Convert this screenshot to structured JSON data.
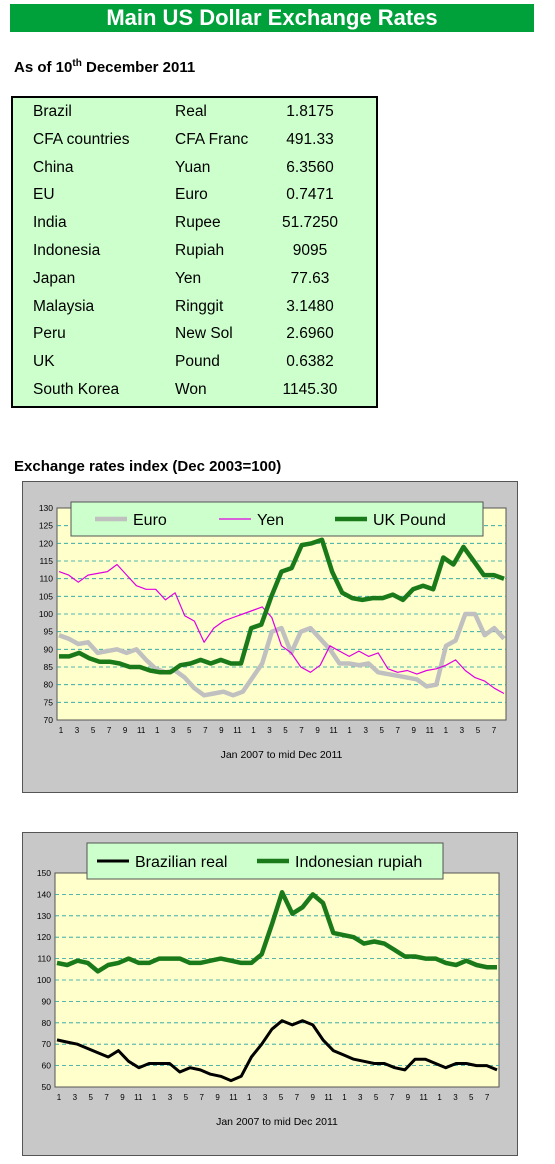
{
  "header": {
    "title": "Main US Dollar Exchange Rates"
  },
  "as_of": {
    "prefix": "As of 10",
    "sup": "th",
    "suffix": " December 2011"
  },
  "rates": [
    {
      "country": "Brazil",
      "currency": "Real",
      "value": "1.8175"
    },
    {
      "country": "CFA countries",
      "currency": "CFA Franc",
      "value": "491.33"
    },
    {
      "country": "China",
      "currency": "Yuan",
      "value": "6.3560"
    },
    {
      "country": "EU",
      "currency": "Euro",
      "value": "0.7471"
    },
    {
      "country": "India",
      "currency": "Rupee",
      "value": "51.7250"
    },
    {
      "country": "Indonesia",
      "currency": "Rupiah",
      "value": "9095"
    },
    {
      "country": "Japan",
      "currency": "Yen",
      "value": "77.63"
    },
    {
      "country": "Malaysia",
      "currency": "Ringgit",
      "value": "3.1480"
    },
    {
      "country": "Peru",
      "currency": "New Sol",
      "value": "2.6960"
    },
    {
      "country": "UK",
      "currency": "Pound",
      "value": "0.6382"
    },
    {
      "country": "South Korea",
      "currency": "Won",
      "value": "1145.30"
    }
  ],
  "index_section_title": "Exchange rates index (Dec 2003=100)",
  "chart_data": [
    {
      "type": "line",
      "title": "",
      "xlabel": "Jan 2007 to mid Dec 2011",
      "ylabel": "",
      "ylim": [
        70,
        130
      ],
      "yticks": [
        70,
        75,
        80,
        85,
        90,
        95,
        100,
        105,
        110,
        115,
        120,
        125,
        130
      ],
      "xtick_labels": [
        "1",
        "3",
        "5",
        "7",
        "9",
        "11",
        "1",
        "3",
        "5",
        "7",
        "9",
        "11",
        "1",
        "3",
        "5",
        "7",
        "9",
        "11",
        "1",
        "3",
        "5",
        "7",
        "9",
        "11",
        "1",
        "3",
        "5",
        "7"
      ],
      "grid": true,
      "legend_position": "top",
      "series": [
        {
          "name": "Euro",
          "color": "#c0c0c0",
          "width": 4.5,
          "values": [
            94,
            93,
            91.5,
            92,
            89,
            89.5,
            90,
            89,
            90,
            87,
            84.5,
            83.5,
            84,
            82,
            79,
            77,
            77.5,
            78,
            77,
            78,
            82,
            86,
            95,
            96,
            89,
            95,
            96,
            93,
            90,
            86,
            86,
            85.5,
            86,
            83.5,
            83,
            82.5,
            82,
            81.5,
            79.5,
            80,
            91,
            92.5,
            100,
            100,
            94,
            96,
            93
          ]
        },
        {
          "name": "Yen",
          "color": "#e000e0",
          "width": 1.2,
          "values": [
            112,
            111,
            109,
            111,
            111.5,
            112,
            114,
            111,
            108,
            107,
            107,
            104,
            106,
            99.5,
            98,
            92,
            96,
            98,
            99,
            100,
            101,
            102,
            99,
            91,
            89,
            85,
            83.5,
            85.5,
            91,
            89.5,
            88,
            89.5,
            88,
            89,
            84.5,
            83.5,
            84,
            83,
            84,
            84.5,
            85.5,
            87,
            84,
            82,
            81,
            79,
            77.5
          ]
        },
        {
          "name": "UK Pound",
          "color": "#1a7a1a",
          "width": 4.5,
          "values": [
            88,
            88,
            89,
            87.5,
            86.5,
            86.5,
            86,
            85,
            85,
            84,
            83.5,
            83.5,
            85.5,
            86,
            87,
            86,
            87,
            86,
            86,
            96,
            97,
            105,
            112,
            113,
            119.5,
            120,
            121,
            112,
            106,
            104.5,
            104,
            104.5,
            104.5,
            105.5,
            104,
            107,
            108,
            107,
            116,
            114,
            119,
            115,
            111,
            111,
            110
          ]
        }
      ]
    },
    {
      "type": "line",
      "title": "",
      "xlabel": "Jan 2007 to mid Dec 2011",
      "ylabel": "",
      "ylim": [
        50,
        150
      ],
      "yticks": [
        50,
        60,
        70,
        80,
        90,
        100,
        110,
        120,
        130,
        140,
        150
      ],
      "xtick_labels": [
        "1",
        "3",
        "5",
        "7",
        "9",
        "11",
        "1",
        "3",
        "5",
        "7",
        "9",
        "11",
        "1",
        "3",
        "5",
        "7",
        "9",
        "11",
        "1",
        "3",
        "5",
        "7",
        "9",
        "11",
        "1",
        "3",
        "5",
        "7"
      ],
      "grid": true,
      "legend_position": "top",
      "series": [
        {
          "name": "Brazilian real",
          "color": "#000000",
          "width": 3,
          "values": [
            72,
            71,
            70,
            68,
            66,
            64,
            67,
            62,
            59,
            61,
            61,
            61,
            57,
            59,
            58,
            56,
            55,
            53,
            55,
            64,
            70,
            77,
            81,
            79,
            81,
            79,
            72,
            67,
            65,
            63,
            62,
            61,
            61,
            59,
            58,
            63,
            63,
            61,
            59,
            61,
            61,
            60,
            60,
            58
          ]
        },
        {
          "name": "Indonesian rupiah",
          "color": "#1a7a1a",
          "width": 4.5,
          "values": [
            108,
            107,
            109,
            108,
            104,
            107,
            108,
            110,
            108,
            108,
            110,
            110,
            110,
            108,
            108,
            109,
            110,
            109,
            108,
            108,
            112,
            126,
            141,
            131,
            134,
            140,
            136,
            122,
            121,
            120,
            117,
            118,
            117,
            114,
            111,
            111,
            110,
            110,
            108,
            107,
            109,
            107,
            106,
            106
          ]
        }
      ]
    }
  ]
}
